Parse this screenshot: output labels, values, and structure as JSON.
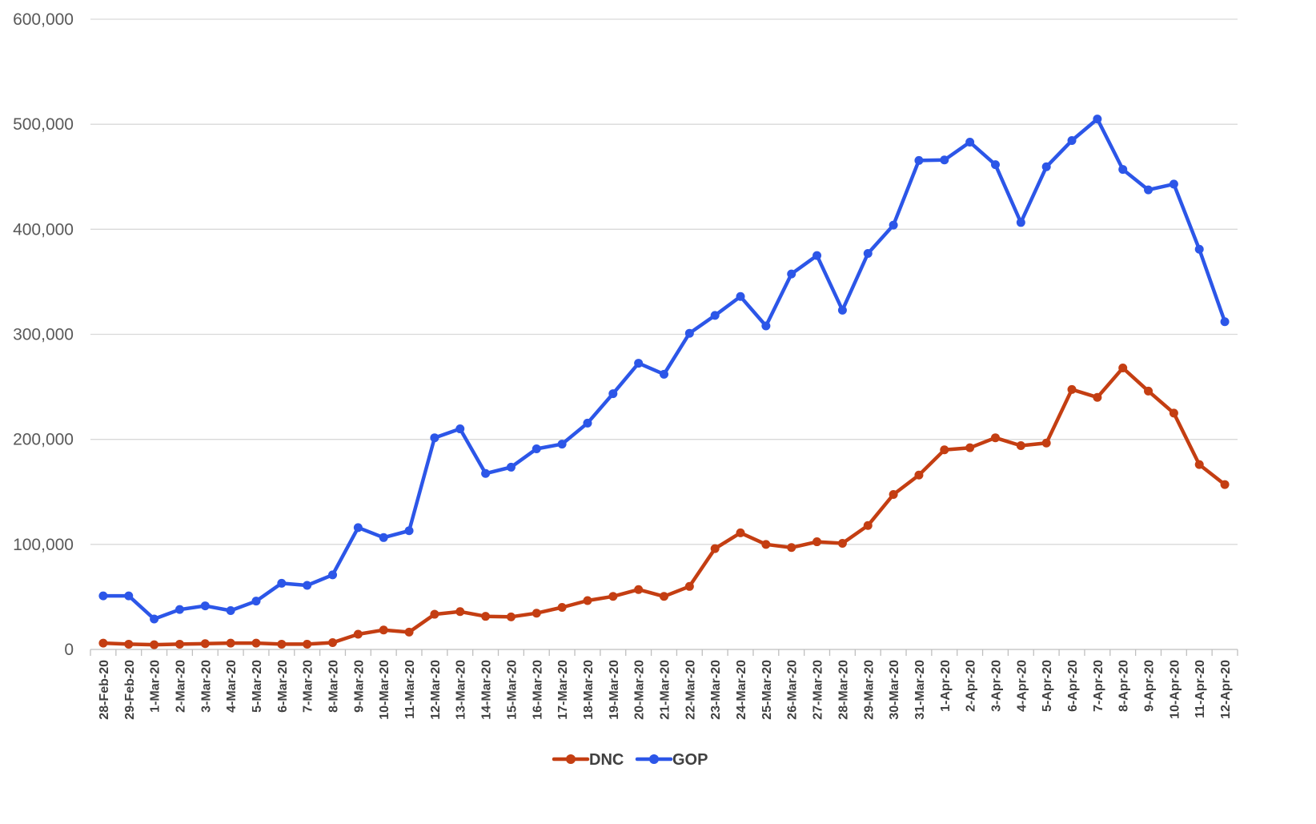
{
  "chart_data": {
    "type": "line",
    "title": "",
    "xlabel": "",
    "ylabel": "",
    "ylim": [
      0,
      600000
    ],
    "yticks": [
      0,
      100000,
      200000,
      300000,
      400000,
      500000,
      600000
    ],
    "ytick_labels": [
      "0",
      "100,000",
      "200,000",
      "300,000",
      "400,000",
      "500,000",
      "600,000"
    ],
    "grid": "horizontal",
    "legend_position": "bottom",
    "categories": [
      "28-Feb-20",
      "29-Feb-20",
      "1-Mar-20",
      "2-Mar-20",
      "3-Mar-20",
      "4-Mar-20",
      "5-Mar-20",
      "6-Mar-20",
      "7-Mar-20",
      "8-Mar-20",
      "9-Mar-20",
      "10-Mar-20",
      "11-Mar-20",
      "12-Mar-20",
      "13-Mar-20",
      "14-Mar-20",
      "15-Mar-20",
      "16-Mar-20",
      "17-Mar-20",
      "18-Mar-20",
      "19-Mar-20",
      "20-Mar-20",
      "21-Mar-20",
      "22-Mar-20",
      "23-Mar-20",
      "24-Mar-20",
      "25-Mar-20",
      "26-Mar-20",
      "27-Mar-20",
      "28-Mar-20",
      "29-Mar-20",
      "30-Mar-20",
      "31-Mar-20",
      "1-Apr-20",
      "2-Apr-20",
      "3-Apr-20",
      "4-Apr-20",
      "5-Apr-20",
      "6-Apr-20",
      "7-Apr-20",
      "8-Apr-20",
      "9-Apr-20",
      "10-Apr-20",
      "11-Apr-20",
      "12-Apr-20"
    ],
    "series": [
      {
        "name": "DNC",
        "color": "#c43e12",
        "values": [
          6000,
          5000,
          4500,
          5000,
          5500,
          6000,
          6000,
          5000,
          5000,
          6500,
          14500,
          18500,
          16500,
          33500,
          36000,
          31500,
          31000,
          34500,
          40000,
          46500,
          50500,
          57000,
          50500,
          60000,
          96000,
          111000,
          100000,
          97000,
          102500,
          101000,
          118000,
          147500,
          166000,
          190000,
          192000,
          201500,
          194000,
          196500,
          247500,
          240000,
          268000,
          246000,
          225000,
          176000,
          157000
        ]
      },
      {
        "name": "GOP",
        "color": "#2c56e8",
        "values": [
          51000,
          51000,
          29000,
          38000,
          41500,
          37000,
          46000,
          63000,
          61000,
          71000,
          116000,
          106500,
          113000,
          201500,
          210000,
          167500,
          173500,
          191000,
          195500,
          215500,
          243500,
          272500,
          262000,
          301000,
          318000,
          336000,
          308000,
          357500,
          375000,
          323000,
          377000,
          404000,
          465500,
          466000,
          483000,
          461500,
          406500,
          459500,
          484500,
          505000,
          457000,
          437500,
          443000,
          381000,
          312000
        ]
      }
    ]
  }
}
